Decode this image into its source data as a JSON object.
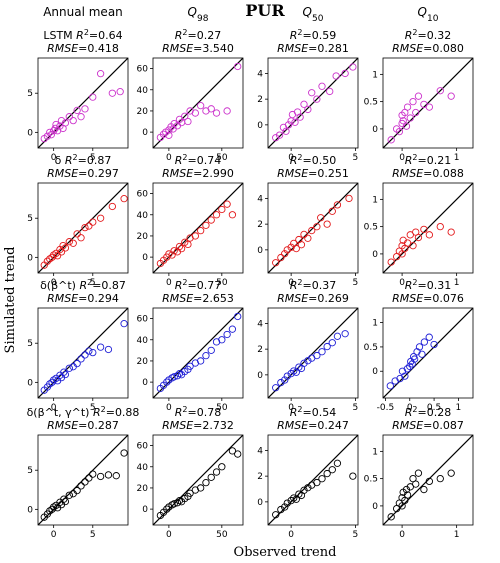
{
  "figure": {
    "title": "PUR",
    "xlabel": "Observed trend",
    "ylabel": "Simulated trend"
  },
  "chart_data": {
    "type": "scatter",
    "title": "PUR",
    "xlabel": "Observed trend",
    "ylabel": "Simulated trend",
    "grid": false,
    "columns": [
      "Annual mean",
      "Q98",
      "Q50",
      "Q10"
    ],
    "rows": [
      "LSTM",
      "δ",
      "δ(β^t)",
      "δ(β^t, γ^t)"
    ],
    "row_colors": [
      "#cc33cc",
      "#e31a1c",
      "#1f1fd6",
      "#000000"
    ],
    "panels": [
      {
        "row": 0,
        "col": 0,
        "label": "LSTM",
        "r2": "0.64",
        "rmse": "0.418"
      },
      {
        "row": 0,
        "col": 1,
        "label": "",
        "r2": "0.27",
        "rmse": "3.540"
      },
      {
        "row": 0,
        "col": 2,
        "label": "",
        "r2": "0.59",
        "rmse": "0.281"
      },
      {
        "row": 0,
        "col": 3,
        "label": "",
        "r2": "0.32",
        "rmse": "0.080"
      },
      {
        "row": 1,
        "col": 0,
        "label": "δ",
        "r2": "0.87",
        "rmse": "0.297"
      },
      {
        "row": 1,
        "col": 1,
        "label": "",
        "r2": "0.74",
        "rmse": "2.990"
      },
      {
        "row": 1,
        "col": 2,
        "label": "",
        "r2": "0.50",
        "rmse": "0.251"
      },
      {
        "row": 1,
        "col": 3,
        "label": "",
        "r2": "0.21",
        "rmse": "0.088"
      },
      {
        "row": 2,
        "col": 0,
        "label": "δ(β^t)",
        "r2": "0.87",
        "rmse": "0.294"
      },
      {
        "row": 2,
        "col": 1,
        "label": "",
        "r2": "0.77",
        "rmse": "2.653"
      },
      {
        "row": 2,
        "col": 2,
        "label": "",
        "r2": "0.37",
        "rmse": "0.269"
      },
      {
        "row": 2,
        "col": 3,
        "label": "",
        "r2": "0.31",
        "rmse": "0.076"
      },
      {
        "row": 3,
        "col": 0,
        "label": "δ(β^t, γ^t)",
        "r2": "0.88",
        "rmse": "0.287"
      },
      {
        "row": 3,
        "col": 1,
        "label": "",
        "r2": "0.78",
        "rmse": "2.732"
      },
      {
        "row": 3,
        "col": 2,
        "label": "",
        "r2": "0.54",
        "rmse": "0.247"
      },
      {
        "row": 3,
        "col": 3,
        "label": "",
        "r2": "0.28",
        "rmse": "0.087"
      }
    ],
    "axes": [
      {
        "col": 0,
        "xlim": [
          -2,
          9.5
        ],
        "ylim": [
          -2,
          9.5
        ],
        "xticks": [
          0,
          5
        ],
        "yticks": [
          0,
          5
        ]
      },
      {
        "col": 1,
        "xlim": [
          -15,
          70
        ],
        "ylim": [
          -15,
          70
        ],
        "xticks": [
          0,
          50
        ],
        "yticks": [
          0,
          20,
          40,
          60
        ]
      },
      {
        "col": 2,
        "xlim": [
          -1.8,
          5.2
        ],
        "ylim": [
          -1.8,
          5.2
        ],
        "xticks": [
          0,
          5
        ],
        "yticks": [
          0,
          2,
          4
        ]
      },
      {
        "col": 3,
        "xlim": [
          -0.35,
          1.3
        ],
        "ylim": [
          -0.35,
          1.3
        ],
        "xticks": [
          0,
          1
        ],
        "yticks": [
          0.0,
          0.5,
          1.0
        ]
      },
      {
        "col": 3,
        "row": 2,
        "xlim": [
          -0.55,
          1.3
        ],
        "ylim": [
          -0.55,
          1.3
        ],
        "xticks": [
          -0.5,
          0.0,
          0.5,
          1.0
        ],
        "yticks": [
          0.0,
          0.5,
          1.0
        ]
      }
    ],
    "series": [
      {
        "name": "LSTM Annual mean",
        "row": 0,
        "col": 0,
        "x": [
          -1.2,
          -0.8,
          -0.5,
          -0.3,
          0,
          0.2,
          0.3,
          0.5,
          0.8,
          1,
          1.2,
          1.5,
          2,
          2.5,
          3,
          3.5,
          4,
          5,
          6,
          7.5,
          8.5
        ],
        "y": [
          -0.8,
          -0.5,
          0,
          -0.3,
          0.2,
          0.5,
          1,
          0.2,
          0.8,
          1.5,
          0.5,
          1.2,
          2,
          1.5,
          2.8,
          2,
          3,
          4.5,
          7.5,
          5,
          5.2
        ]
      },
      {
        "name": "LSTM Q98",
        "row": 0,
        "col": 1,
        "x": [
          -8,
          -5,
          -3,
          0,
          0,
          2,
          4,
          5,
          8,
          10,
          12,
          15,
          18,
          20,
          25,
          30,
          35,
          40,
          45,
          55,
          65
        ],
        "y": [
          -5,
          -2,
          0,
          2,
          -3,
          5,
          3,
          8,
          6,
          12,
          9,
          15,
          10,
          20,
          18,
          25,
          20,
          22,
          18,
          20,
          62
        ]
      },
      {
        "name": "LSTM Q50",
        "row": 0,
        "col": 2,
        "x": [
          -1.2,
          -0.9,
          -0.6,
          -0.4,
          -0.2,
          0,
          0.1,
          0.3,
          0.5,
          0.7,
          1,
          1.3,
          1.6,
          2,
          2.4,
          3,
          3.5,
          4.2,
          4.8
        ],
        "y": [
          -1,
          -0.8,
          -0.2,
          -0.5,
          0,
          0.3,
          0.8,
          0.2,
          1,
          0.6,
          1.6,
          1.2,
          2.5,
          2,
          3,
          2.6,
          3.8,
          4,
          4.5
        ]
      },
      {
        "name": "LSTM Q10",
        "row": 0,
        "col": 3,
        "x": [
          -0.2,
          -0.1,
          -0.05,
          0,
          0,
          0.02,
          0.05,
          0.08,
          0.1,
          0.15,
          0.2,
          0.25,
          0.3,
          0.4,
          0.5,
          0.7,
          0.9
        ],
        "y": [
          -0.2,
          0,
          -0.05,
          0.1,
          0.25,
          0.15,
          0.3,
          0.05,
          0.4,
          0.2,
          0.5,
          0.3,
          0.6,
          0.45,
          0.4,
          0.7,
          0.6
        ]
      },
      {
        "name": "δ Annual mean",
        "row": 1,
        "col": 0,
        "x": [
          -1.2,
          -0.8,
          -0.5,
          -0.2,
          0,
          0.3,
          0.5,
          0.8,
          1,
          1.2,
          1.5,
          2,
          2.5,
          3,
          3.5,
          4,
          4.5,
          5,
          6,
          7.5,
          9
        ],
        "y": [
          -1,
          -0.5,
          -0.2,
          0,
          0.3,
          0.5,
          0.2,
          1,
          0.7,
          1.5,
          1.2,
          2,
          1.8,
          3,
          2.5,
          3.8,
          4,
          4.5,
          5,
          6.5,
          7.5
        ]
      },
      {
        "name": "δ Q98",
        "row": 1,
        "col": 1,
        "x": [
          -8,
          -5,
          -2,
          0,
          3,
          5,
          8,
          10,
          12,
          15,
          18,
          20,
          25,
          30,
          35,
          40,
          45,
          50,
          55,
          60
        ],
        "y": [
          -6,
          -3,
          0,
          3,
          2,
          6,
          5,
          10,
          8,
          14,
          12,
          18,
          20,
          25,
          30,
          35,
          40,
          45,
          50,
          40
        ]
      },
      {
        "name": "δ Q50",
        "row": 1,
        "col": 2,
        "x": [
          -1.2,
          -0.8,
          -0.5,
          -0.3,
          0,
          0.2,
          0.4,
          0.6,
          0.8,
          1,
          1.3,
          1.6,
          2,
          2.3,
          2.8,
          3.2,
          3.6,
          4.5
        ],
        "y": [
          -1,
          -0.6,
          -0.3,
          0,
          0.2,
          0.5,
          0.1,
          0.8,
          0.4,
          1.2,
          0.9,
          1.5,
          1.8,
          2.5,
          2,
          3,
          3.5,
          4
        ]
      },
      {
        "name": "δ Q10",
        "row": 1,
        "col": 3,
        "x": [
          -0.2,
          -0.1,
          -0.05,
          0,
          0,
          0.02,
          0.05,
          0.1,
          0.15,
          0.2,
          0.25,
          0.3,
          0.4,
          0.5,
          0.7,
          0.9
        ],
        "y": [
          -0.15,
          -0.05,
          0.05,
          0,
          0.15,
          0.25,
          0.1,
          0.2,
          0.35,
          0.15,
          0.4,
          0.3,
          0.45,
          0.35,
          0.5,
          0.4
        ]
      },
      {
        "name": "δ(β^t) Annual mean",
        "row": 2,
        "col": 0,
        "x": [
          -1.2,
          -0.8,
          -0.5,
          -0.2,
          0,
          0.3,
          0.5,
          0.8,
          1,
          1.3,
          1.5,
          2,
          2.5,
          3,
          3.5,
          4,
          4.5,
          5,
          6,
          7,
          9
        ],
        "y": [
          -1,
          -0.6,
          -0.2,
          0,
          0.3,
          0.5,
          0.2,
          0.9,
          0.6,
          1.3,
          1,
          1.8,
          2,
          2.4,
          3,
          3.5,
          4,
          3.8,
          4.5,
          4.2,
          7.5
        ]
      },
      {
        "name": "δ(β^t) Q98",
        "row": 2,
        "col": 1,
        "x": [
          -8,
          -5,
          -2,
          0,
          3,
          5,
          8,
          10,
          12,
          15,
          18,
          20,
          25,
          30,
          35,
          40,
          45,
          50,
          55,
          60,
          65
        ],
        "y": [
          -6,
          -3,
          0,
          2,
          4,
          5,
          6,
          8,
          7,
          10,
          12,
          15,
          18,
          20,
          25,
          30,
          38,
          40,
          45,
          50,
          62
        ]
      },
      {
        "name": "δ(β^t) Q50",
        "row": 2,
        "col": 2,
        "x": [
          -1.2,
          -0.8,
          -0.5,
          -0.3,
          0,
          0.2,
          0.4,
          0.6,
          0.8,
          1,
          1.3,
          1.6,
          2,
          2.4,
          2.8,
          3.2,
          3.6,
          4.2
        ],
        "y": [
          -1,
          -0.6,
          -0.4,
          -0.1,
          0.1,
          0.3,
          0.2,
          0.6,
          0.5,
          0.9,
          1.1,
          1.3,
          1.5,
          1.8,
          2.2,
          2.5,
          3,
          3.2
        ]
      },
      {
        "name": "δ(β^t) Q10",
        "row": 2,
        "col": 3,
        "x": [
          -0.4,
          -0.3,
          -0.2,
          -0.15,
          -0.1,
          -0.05,
          0,
          0.02,
          0.05,
          0.08,
          0.1,
          0.15,
          0.2,
          0.25,
          0.3,
          0.4,
          0.5
        ],
        "y": [
          -0.3,
          -0.2,
          -0.15,
          0,
          -0.1,
          0.05,
          0.1,
          0.2,
          0.15,
          0.3,
          0.25,
          0.4,
          0.5,
          0.35,
          0.6,
          0.7,
          0.55
        ]
      },
      {
        "name": "δ(β^t, γ^t) Annual mean",
        "row": 3,
        "col": 0,
        "x": [
          -1.2,
          -0.8,
          -0.5,
          -0.2,
          0,
          0.3,
          0.5,
          0.8,
          1,
          1.3,
          1.5,
          2,
          2.5,
          3,
          3.5,
          4,
          4.5,
          5,
          6,
          7,
          8,
          9
        ],
        "y": [
          -1,
          -0.6,
          -0.2,
          0,
          0.3,
          0.5,
          0.2,
          0.9,
          0.6,
          1.3,
          1,
          1.8,
          2,
          2.4,
          3,
          3.5,
          4,
          4.5,
          4.2,
          4.4,
          4.3,
          7.2
        ]
      },
      {
        "name": "δ(β^t, γ^t) Q98",
        "row": 3,
        "col": 1,
        "x": [
          -8,
          -5,
          -2,
          0,
          3,
          5,
          8,
          10,
          12,
          15,
          18,
          20,
          25,
          30,
          35,
          40,
          45,
          50,
          60,
          65
        ],
        "y": [
          -6,
          -3,
          0,
          2,
          4,
          5,
          6,
          8,
          7,
          10,
          12,
          15,
          18,
          20,
          25,
          30,
          35,
          40,
          55,
          52
        ]
      },
      {
        "name": "δ(β^t, γ^t) Q50",
        "row": 3,
        "col": 2,
        "x": [
          -1.2,
          -0.8,
          -0.5,
          -0.3,
          0,
          0.2,
          0.4,
          0.6,
          0.8,
          1,
          1.3,
          1.6,
          2,
          2.4,
          2.8,
          3.2,
          3.6,
          4.8
        ],
        "y": [
          -1,
          -0.6,
          -0.4,
          -0.1,
          0.1,
          0.3,
          0.2,
          0.6,
          0.5,
          0.9,
          1.1,
          1.3,
          1.5,
          1.8,
          2.2,
          2.5,
          3,
          2
        ]
      },
      {
        "name": "δ(β^t, γ^t) Q10",
        "row": 3,
        "col": 3,
        "x": [
          -0.2,
          -0.1,
          -0.05,
          0,
          0,
          0.02,
          0.05,
          0.08,
          0.1,
          0.15,
          0.2,
          0.25,
          0.3,
          0.4,
          0.5,
          0.7,
          0.9
        ],
        "y": [
          -0.2,
          -0.05,
          0.05,
          0,
          0.15,
          0.25,
          0.1,
          0.3,
          0.2,
          0.35,
          0.5,
          0.4,
          0.6,
          0.3,
          0.45,
          0.5,
          0.6
        ]
      }
    ]
  }
}
